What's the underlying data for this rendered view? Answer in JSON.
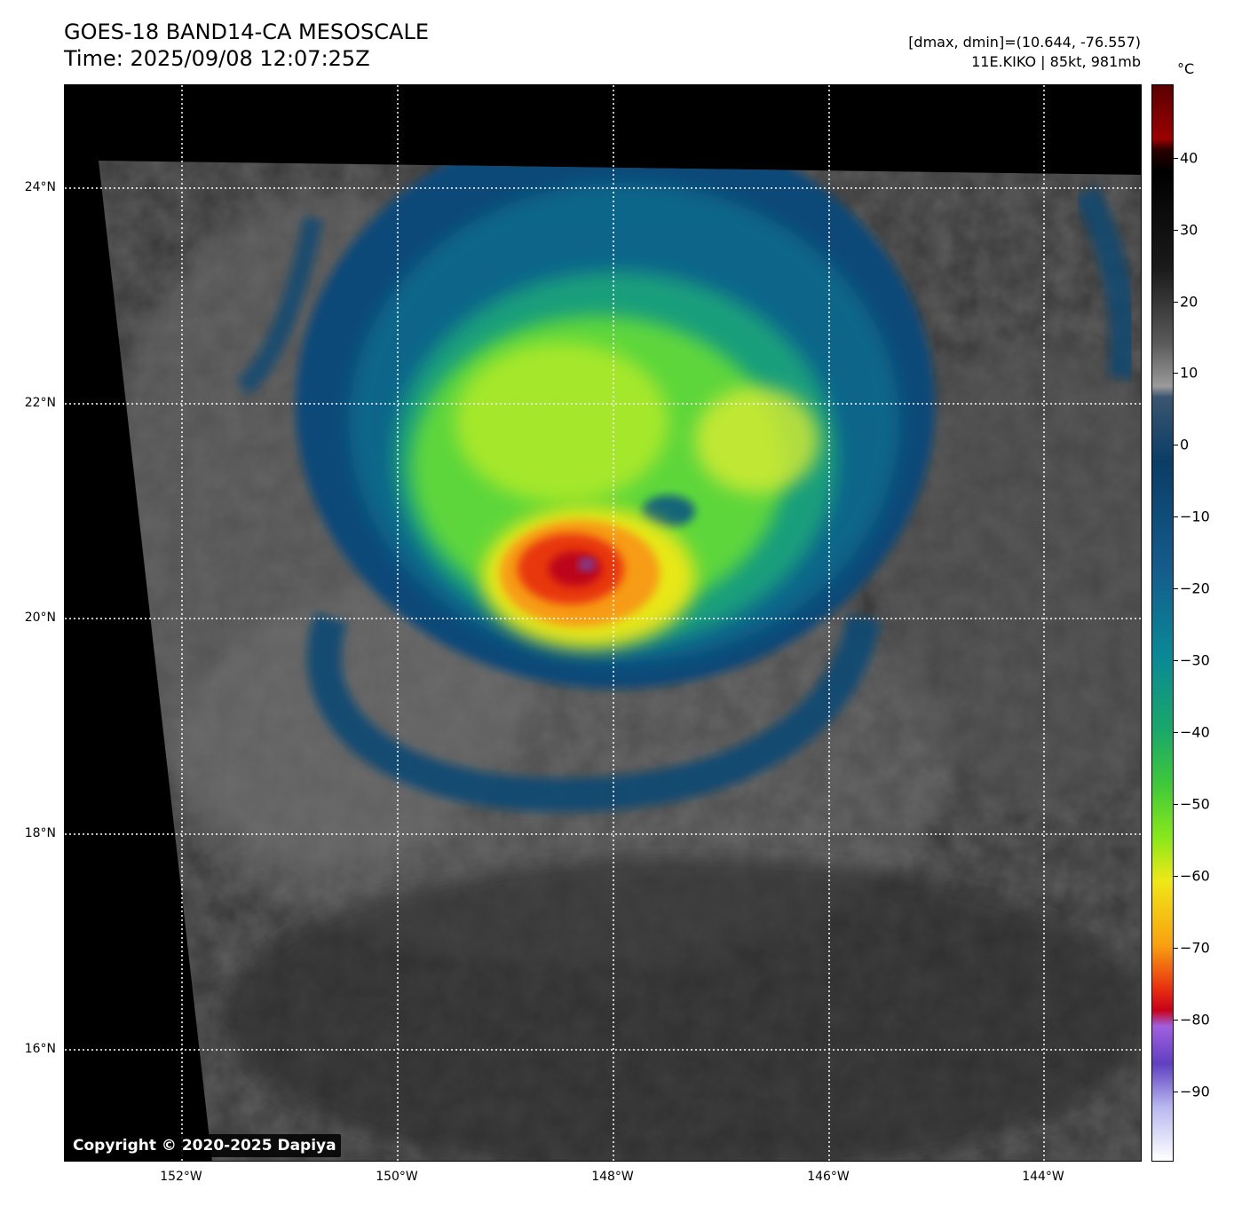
{
  "header": {
    "title": "GOES-18 BAND14-CA MESOSCALE",
    "time": "Time: 2025/09/08 12:07:25Z",
    "range": "[dmax, dmin]=(10.644, -76.557)",
    "storm": "11E.KIKO | 85kt, 981mb"
  },
  "map": {
    "lat_labels": [
      "24°N",
      "22°N",
      "20°N",
      "18°N",
      "16°N"
    ],
    "lon_labels": [
      "152°W",
      "150°W",
      "148°W",
      "146°W",
      "144°W"
    ],
    "copyright": "Copyright © 2020-2025 Dapiya"
  },
  "colorbar": {
    "unit": "°C",
    "ticks": [
      "40",
      "30",
      "20",
      "10",
      "0",
      "−10",
      "−20",
      "−30",
      "−40",
      "−50",
      "−60",
      "−70",
      "−80",
      "−90"
    ]
  }
}
